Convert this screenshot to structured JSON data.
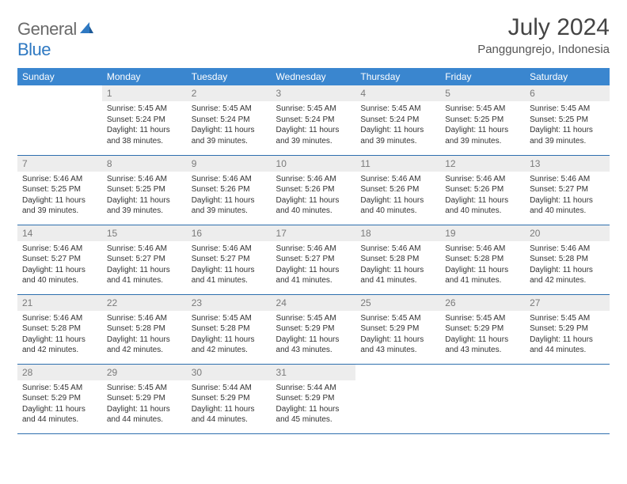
{
  "brand": {
    "general": "General",
    "blue": "Blue"
  },
  "title": "July 2024",
  "location": "Panggungrejo, Indonesia",
  "header_color": "#3a86cf",
  "rule_color": "#2e6fae",
  "daynum_bg": "#ededed",
  "dayNames": [
    "Sunday",
    "Monday",
    "Tuesday",
    "Wednesday",
    "Thursday",
    "Friday",
    "Saturday"
  ],
  "weeks": [
    [
      null,
      {
        "n": "1",
        "sunrise": "5:45 AM",
        "sunset": "5:24 PM",
        "daylight": "11 hours and 38 minutes."
      },
      {
        "n": "2",
        "sunrise": "5:45 AM",
        "sunset": "5:24 PM",
        "daylight": "11 hours and 39 minutes."
      },
      {
        "n": "3",
        "sunrise": "5:45 AM",
        "sunset": "5:24 PM",
        "daylight": "11 hours and 39 minutes."
      },
      {
        "n": "4",
        "sunrise": "5:45 AM",
        "sunset": "5:24 PM",
        "daylight": "11 hours and 39 minutes."
      },
      {
        "n": "5",
        "sunrise": "5:45 AM",
        "sunset": "5:25 PM",
        "daylight": "11 hours and 39 minutes."
      },
      {
        "n": "6",
        "sunrise": "5:45 AM",
        "sunset": "5:25 PM",
        "daylight": "11 hours and 39 minutes."
      }
    ],
    [
      {
        "n": "7",
        "sunrise": "5:46 AM",
        "sunset": "5:25 PM",
        "daylight": "11 hours and 39 minutes."
      },
      {
        "n": "8",
        "sunrise": "5:46 AM",
        "sunset": "5:25 PM",
        "daylight": "11 hours and 39 minutes."
      },
      {
        "n": "9",
        "sunrise": "5:46 AM",
        "sunset": "5:26 PM",
        "daylight": "11 hours and 39 minutes."
      },
      {
        "n": "10",
        "sunrise": "5:46 AM",
        "sunset": "5:26 PM",
        "daylight": "11 hours and 40 minutes."
      },
      {
        "n": "11",
        "sunrise": "5:46 AM",
        "sunset": "5:26 PM",
        "daylight": "11 hours and 40 minutes."
      },
      {
        "n": "12",
        "sunrise": "5:46 AM",
        "sunset": "5:26 PM",
        "daylight": "11 hours and 40 minutes."
      },
      {
        "n": "13",
        "sunrise": "5:46 AM",
        "sunset": "5:27 PM",
        "daylight": "11 hours and 40 minutes."
      }
    ],
    [
      {
        "n": "14",
        "sunrise": "5:46 AM",
        "sunset": "5:27 PM",
        "daylight": "11 hours and 40 minutes."
      },
      {
        "n": "15",
        "sunrise": "5:46 AM",
        "sunset": "5:27 PM",
        "daylight": "11 hours and 41 minutes."
      },
      {
        "n": "16",
        "sunrise": "5:46 AM",
        "sunset": "5:27 PM",
        "daylight": "11 hours and 41 minutes."
      },
      {
        "n": "17",
        "sunrise": "5:46 AM",
        "sunset": "5:27 PM",
        "daylight": "11 hours and 41 minutes."
      },
      {
        "n": "18",
        "sunrise": "5:46 AM",
        "sunset": "5:28 PM",
        "daylight": "11 hours and 41 minutes."
      },
      {
        "n": "19",
        "sunrise": "5:46 AM",
        "sunset": "5:28 PM",
        "daylight": "11 hours and 41 minutes."
      },
      {
        "n": "20",
        "sunrise": "5:46 AM",
        "sunset": "5:28 PM",
        "daylight": "11 hours and 42 minutes."
      }
    ],
    [
      {
        "n": "21",
        "sunrise": "5:46 AM",
        "sunset": "5:28 PM",
        "daylight": "11 hours and 42 minutes."
      },
      {
        "n": "22",
        "sunrise": "5:46 AM",
        "sunset": "5:28 PM",
        "daylight": "11 hours and 42 minutes."
      },
      {
        "n": "23",
        "sunrise": "5:45 AM",
        "sunset": "5:28 PM",
        "daylight": "11 hours and 42 minutes."
      },
      {
        "n": "24",
        "sunrise": "5:45 AM",
        "sunset": "5:29 PM",
        "daylight": "11 hours and 43 minutes."
      },
      {
        "n": "25",
        "sunrise": "5:45 AM",
        "sunset": "5:29 PM",
        "daylight": "11 hours and 43 minutes."
      },
      {
        "n": "26",
        "sunrise": "5:45 AM",
        "sunset": "5:29 PM",
        "daylight": "11 hours and 43 minutes."
      },
      {
        "n": "27",
        "sunrise": "5:45 AM",
        "sunset": "5:29 PM",
        "daylight": "11 hours and 44 minutes."
      }
    ],
    [
      {
        "n": "28",
        "sunrise": "5:45 AM",
        "sunset": "5:29 PM",
        "daylight": "11 hours and 44 minutes."
      },
      {
        "n": "29",
        "sunrise": "5:45 AM",
        "sunset": "5:29 PM",
        "daylight": "11 hours and 44 minutes."
      },
      {
        "n": "30",
        "sunrise": "5:44 AM",
        "sunset": "5:29 PM",
        "daylight": "11 hours and 44 minutes."
      },
      {
        "n": "31",
        "sunrise": "5:44 AM",
        "sunset": "5:29 PM",
        "daylight": "11 hours and 45 minutes."
      },
      null,
      null,
      null
    ]
  ],
  "labels": {
    "sunrise": "Sunrise:",
    "sunset": "Sunset:",
    "daylight": "Daylight:"
  }
}
